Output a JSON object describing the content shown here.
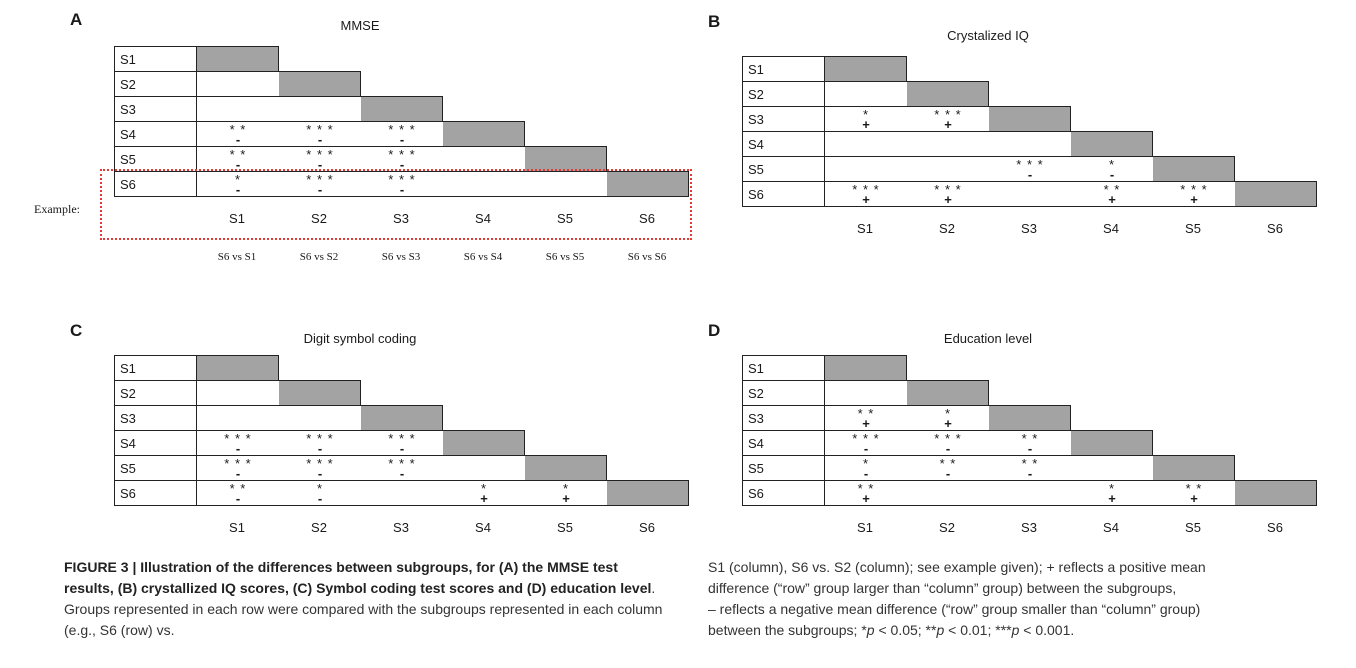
{
  "panels": [
    {
      "id": "A",
      "title": "MMSE",
      "rows": [
        "S1",
        "S2",
        "S3",
        "S4",
        "S5",
        "S6"
      ],
      "cols": [
        "S1",
        "S2",
        "S3",
        "S4",
        "S5",
        "S6"
      ],
      "cells": [
        [
          null,
          null,
          null,
          null,
          null,
          null
        ],
        [
          null,
          null,
          null,
          null,
          null,
          null
        ],
        [
          null,
          null,
          null,
          null,
          null,
          null
        ],
        [
          {
            "stars": "* *",
            "sign": "-"
          },
          {
            "stars": "* * *",
            "sign": "-"
          },
          {
            "stars": "* * *",
            "sign": "-"
          },
          null,
          null,
          null
        ],
        [
          {
            "stars": "* *",
            "sign": "-"
          },
          {
            "stars": "* * *",
            "sign": "-"
          },
          {
            "stars": "* * *",
            "sign": "-"
          },
          null,
          null,
          null
        ],
        [
          {
            "stars": "*",
            "sign": "-"
          },
          {
            "stars": "* * *",
            "sign": "-"
          },
          {
            "stars": "* * *",
            "sign": "-"
          },
          null,
          null,
          null
        ]
      ],
      "example": {
        "label": "Example:",
        "sub": [
          "S6 vs S1",
          "S6 vs S2",
          "S6 vs S3",
          "S6 vs S4",
          "S6 vs S5",
          "S6 vs S6"
        ]
      }
    },
    {
      "id": "B",
      "title": "Crystalized IQ",
      "rows": [
        "S1",
        "S2",
        "S3",
        "S4",
        "S5",
        "S6"
      ],
      "cols": [
        "S1",
        "S2",
        "S3",
        "S4",
        "S5",
        "S6"
      ],
      "cells": [
        [
          null,
          null,
          null,
          null,
          null,
          null
        ],
        [
          null,
          null,
          null,
          null,
          null,
          null
        ],
        [
          {
            "stars": "*",
            "sign": "+"
          },
          {
            "stars": "* * *",
            "sign": "+"
          },
          null,
          null,
          null,
          null
        ],
        [
          null,
          null,
          null,
          null,
          null,
          null
        ],
        [
          null,
          null,
          {
            "stars": "* * *",
            "sign": "-"
          },
          {
            "stars": "*",
            "sign": "-"
          },
          null,
          null
        ],
        [
          {
            "stars": "* * *",
            "sign": "+"
          },
          {
            "stars": "* * *",
            "sign": "+"
          },
          null,
          {
            "stars": "* *",
            "sign": "+"
          },
          {
            "stars": "* * *",
            "sign": "+"
          },
          null
        ]
      ]
    },
    {
      "id": "C",
      "title": "Digit symbol coding",
      "rows": [
        "S1",
        "S2",
        "S3",
        "S4",
        "S5",
        "S6"
      ],
      "cols": [
        "S1",
        "S2",
        "S3",
        "S4",
        "S5",
        "S6"
      ],
      "cells": [
        [
          null,
          null,
          null,
          null,
          null,
          null
        ],
        [
          null,
          null,
          null,
          null,
          null,
          null
        ],
        [
          null,
          null,
          null,
          null,
          null,
          null
        ],
        [
          {
            "stars": "* * *",
            "sign": "-"
          },
          {
            "stars": "* * *",
            "sign": "-"
          },
          {
            "stars": "* * *",
            "sign": "-"
          },
          null,
          null,
          null
        ],
        [
          {
            "stars": "* * *",
            "sign": "-"
          },
          {
            "stars": "* * *",
            "sign": "-"
          },
          {
            "stars": "* * *",
            "sign": "-"
          },
          null,
          null,
          null
        ],
        [
          {
            "stars": "* *",
            "sign": "-"
          },
          {
            "stars": "*",
            "sign": "-"
          },
          null,
          {
            "stars": "*",
            "sign": "+"
          },
          {
            "stars": "*",
            "sign": "+"
          },
          null
        ]
      ]
    },
    {
      "id": "D",
      "title": "Education level",
      "rows": [
        "S1",
        "S2",
        "S3",
        "S4",
        "S5",
        "S6"
      ],
      "cols": [
        "S1",
        "S2",
        "S3",
        "S4",
        "S5",
        "S6"
      ],
      "cells": [
        [
          null,
          null,
          null,
          null,
          null,
          null
        ],
        [
          null,
          null,
          null,
          null,
          null,
          null
        ],
        [
          {
            "stars": "* *",
            "sign": "+"
          },
          {
            "stars": "*",
            "sign": "+"
          },
          null,
          null,
          null,
          null
        ],
        [
          {
            "stars": "* * *",
            "sign": "-"
          },
          {
            "stars": "* * *",
            "sign": "-"
          },
          {
            "stars": "* *",
            "sign": "-"
          },
          null,
          null,
          null
        ],
        [
          {
            "stars": "*",
            "sign": "-"
          },
          {
            "stars": "* *",
            "sign": "-"
          },
          {
            "stars": "* *",
            "sign": "-"
          },
          null,
          null,
          null
        ],
        [
          {
            "stars": "* *",
            "sign": "+"
          },
          null,
          null,
          {
            "stars": "*",
            "sign": "+"
          },
          {
            "stars": "* *",
            "sign": "+"
          },
          null
        ]
      ]
    }
  ],
  "caption": {
    "figure_label": "FIGURE 3 |",
    "bold_text": "Illustration of the differences between subgroups, for (A) the MMSE test results, (B) crystallized IQ scores, (C) Symbol coding test scores and (D) education level",
    "left_rest": ". Groups represented in each row were compared with the subgroups represented in each column (e.g., S6 (row) vs.",
    "right_1": "S1 (column), S6 vs. S2 (column); see example given); + reflects a positive mean",
    "right_2": "difference (“row” group larger than “column” group) between the subgroups,",
    "right_3": "– reflects a negative mean difference (“row” group smaller than “column” group)",
    "right_4_pre": "between the subgroups; *",
    "p": "p",
    "p1": " < 0.05; **",
    "p2": " < 0.01; ***",
    "p3": " < 0.001."
  }
}
